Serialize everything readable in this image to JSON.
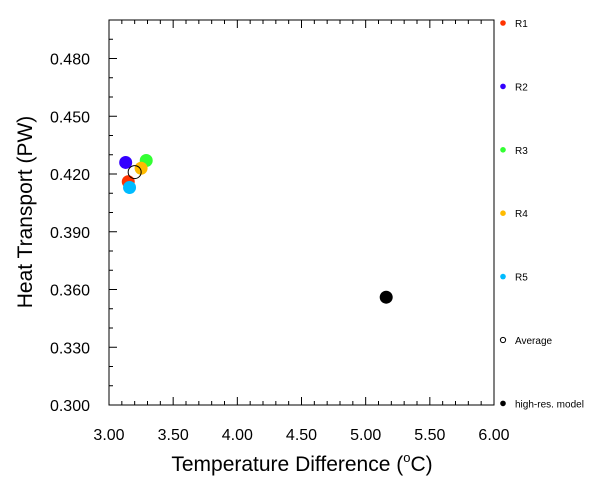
{
  "chart_data": {
    "type": "scatter",
    "xlabel": "Temperature Difference (",
    "xlabel_degree": "o",
    "xlabel_unit": "C)",
    "ylabel": "Heat Transport (PW)",
    "xlim": [
      3.0,
      6.0
    ],
    "ylim": [
      0.3,
      0.5
    ],
    "xticks": [
      "3.00",
      "3.50",
      "4.00",
      "4.50",
      "5.00",
      "5.50",
      "6.00"
    ],
    "yticks": [
      "0.300",
      "0.330",
      "0.360",
      "0.390",
      "0.420",
      "0.450",
      "0.480"
    ],
    "grid": false,
    "legend_placement": "right",
    "series": [
      {
        "name": "R1",
        "color": "#ff3300",
        "marker": "filled-circle",
        "points": [
          [
            3.15,
            0.416
          ]
        ]
      },
      {
        "name": "R2",
        "color": "#3300ff",
        "marker": "filled-circle",
        "points": [
          [
            3.13,
            0.426
          ]
        ]
      },
      {
        "name": "R3",
        "color": "#33ff33",
        "marker": "filled-circle",
        "points": [
          [
            3.29,
            0.427
          ]
        ]
      },
      {
        "name": "R4",
        "color": "#ffbb00",
        "marker": "filled-circle",
        "points": [
          [
            3.25,
            0.423
          ]
        ]
      },
      {
        "name": "R5",
        "color": "#00bbff",
        "marker": "filled-circle",
        "points": [
          [
            3.16,
            0.413
          ]
        ]
      },
      {
        "name": "Average",
        "color": "#000000",
        "marker": "open-circle",
        "points": [
          [
            3.2,
            0.421
          ]
        ]
      },
      {
        "name": "high-res. model",
        "color": "#000000",
        "marker": "filled-circle",
        "points": [
          [
            5.16,
            0.356
          ]
        ]
      }
    ]
  }
}
